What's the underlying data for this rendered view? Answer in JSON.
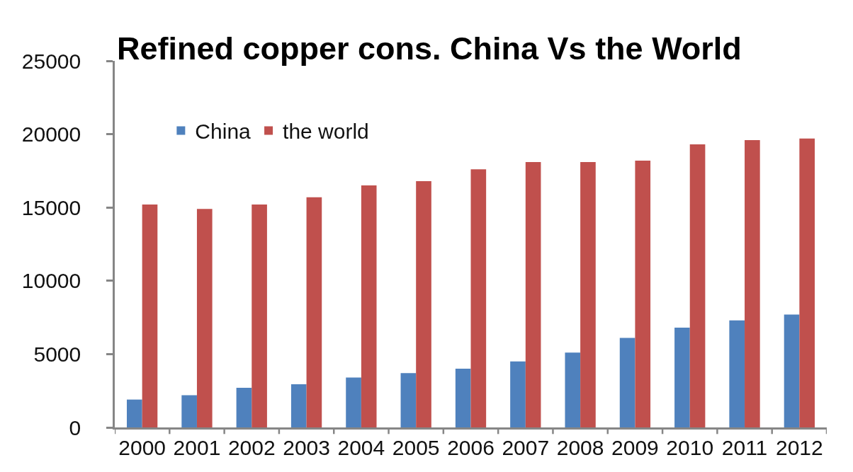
{
  "chart_data": {
    "type": "bar",
    "title": "Refined copper cons. China Vs the World",
    "categories": [
      "2000",
      "2001",
      "2002",
      "2003",
      "2004",
      "2005",
      "2006",
      "2007",
      "2008",
      "2009",
      "2010",
      "2011",
      "2012"
    ],
    "series": [
      {
        "name": "China",
        "color": "#4f81bd",
        "values": [
          1900,
          2200,
          2700,
          2950,
          3400,
          3700,
          4000,
          4500,
          5100,
          6100,
          6800,
          7300,
          7700
        ]
      },
      {
        "name": "the world",
        "color": "#c0504d",
        "values": [
          15200,
          14900,
          15200,
          15700,
          16500,
          16800,
          17600,
          18100,
          18100,
          18200,
          19300,
          19600,
          19700
        ]
      }
    ],
    "ylim": [
      0,
      25000
    ],
    "yticks": [
      0,
      5000,
      10000,
      15000,
      20000,
      25000
    ],
    "legend": "top left"
  }
}
